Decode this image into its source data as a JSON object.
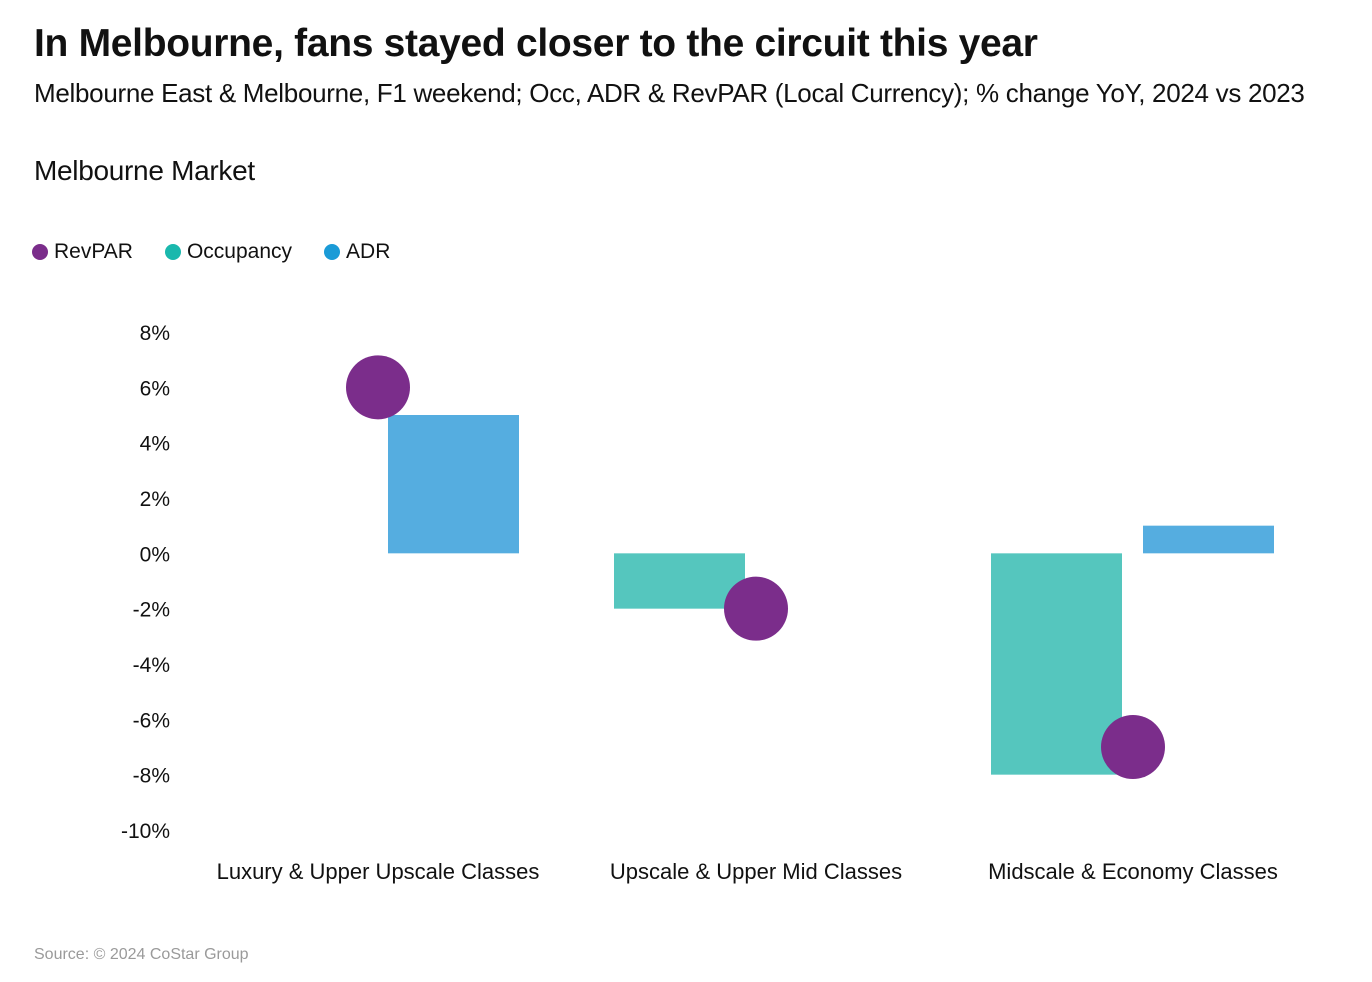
{
  "title": "In Melbourne, fans stayed closer to the circuit this year",
  "subtitle": "Melbourne East & Melbourne, F1 weekend; Occ, ADR & RevPAR (Local Currency); % change YoY, 2024 vs 2023",
  "section_title": "Melbourne Market",
  "source": "Source: © 2024 CoStar Group",
  "legend": [
    {
      "label": "RevPAR",
      "color": "#7b2d8b"
    },
    {
      "label": "Occupancy",
      "color": "#1ab8ad"
    },
    {
      "label": "ADR",
      "color": "#1a9bd7"
    }
  ],
  "chart_data": {
    "type": "bar",
    "title": "Melbourne Market",
    "categories": [
      "Luxury & Upper Upscale Classes",
      "Upscale & Upper Mid Classes",
      "Midscale & Economy Classes"
    ],
    "series": [
      {
        "name": "Occupancy",
        "kind": "bar",
        "color": "#55c6be",
        "values": [
          0,
          -2,
          -8
        ]
      },
      {
        "name": "ADR",
        "kind": "bar",
        "color": "#55ade0",
        "values": [
          5,
          0,
          1
        ]
      },
      {
        "name": "RevPAR",
        "kind": "dot",
        "color": "#7b2d8b",
        "values": [
          6,
          -2,
          -7
        ]
      }
    ],
    "y_ticks": [
      8,
      6,
      4,
      2,
      0,
      -2,
      -4,
      -6,
      -8,
      -10
    ],
    "y_tick_labels": [
      "8%",
      "6%",
      "4%",
      "2%",
      "0%",
      "-2%",
      "-4%",
      "-6%",
      "-8%",
      "-10%"
    ],
    "ylim": [
      -10,
      8
    ],
    "xlabel": "",
    "ylabel": "",
    "grid": false,
    "legend_position": "top-left"
  }
}
